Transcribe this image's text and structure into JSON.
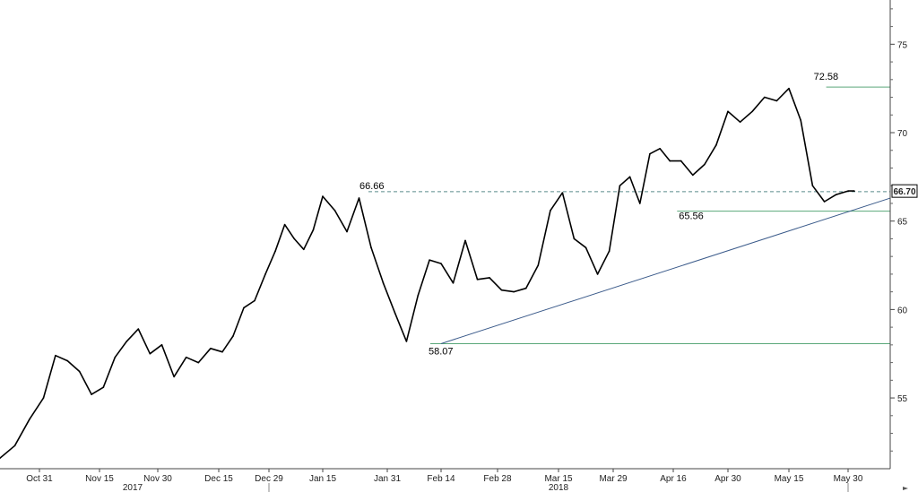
{
  "chart_data": {
    "type": "line",
    "title": "",
    "xlabel": "",
    "ylabel": "",
    "ylim": [
      51,
      77.5
    ],
    "y_axis_position": "right",
    "y_ticks": [
      55,
      60,
      65,
      70,
      75
    ],
    "x_ticks": [
      "Oct 31",
      "Nov 15",
      "Nov 30",
      "Dec 15",
      "Dec 29",
      "Jan 15",
      "Jan 31",
      "Feb 14",
      "Feb 28",
      "Mar 15",
      "Mar 29",
      "Apr 16",
      "Apr 30",
      "May 15",
      "May 30"
    ],
    "year_labels": [
      "2017",
      "2018"
    ],
    "last_value_label": "66.70",
    "series": [
      {
        "color": "#000000",
        "x": [
          "Oct 23",
          "Oct 26",
          "Oct 29",
          "Nov 01",
          "Nov 04",
          "Nov 07",
          "Nov 10",
          "Nov 13",
          "Nov 16",
          "Nov 19",
          "Nov 22",
          "Nov 25",
          "Nov 28",
          "Dec 01",
          "Dec 04",
          "Dec 07",
          "Dec 10",
          "Dec 13",
          "Dec 16",
          "Dec 19",
          "Dec 22",
          "Dec 25",
          "Dec 28",
          "Dec 31",
          "Jan 03",
          "Jan 06",
          "Jan 09",
          "Jan 12",
          "Jan 15",
          "Jan 18",
          "Jan 21",
          "Jan 24",
          "Jan 27",
          "Jan 30",
          "Feb 02",
          "Feb 05",
          "Feb 08",
          "Feb 11",
          "Feb 14",
          "Feb 17",
          "Feb 20",
          "Feb 23",
          "Feb 26",
          "Mar 01",
          "Mar 04",
          "Mar 07",
          "Mar 10",
          "Mar 13",
          "Mar 16",
          "Mar 19",
          "Mar 22",
          "Mar 25",
          "Mar 28",
          "Mar 31",
          "Apr 03",
          "Apr 06",
          "Apr 09",
          "Apr 12",
          "Apr 15",
          "Apr 18",
          "Apr 21",
          "Apr 24",
          "Apr 27",
          "Apr 30",
          "May 03",
          "May 06",
          "May 09",
          "May 12",
          "May 15",
          "May 18",
          "May 21",
          "May 24",
          "May 27",
          "May 30",
          "Jun 01"
        ],
        "values": [
          51.6,
          52.3,
          53.8,
          55.0,
          57.4,
          57.1,
          56.5,
          55.2,
          55.6,
          57.3,
          58.2,
          58.9,
          57.5,
          58.0,
          56.2,
          57.3,
          57.0,
          57.8,
          57.6,
          58.5,
          60.1,
          60.5,
          62.0,
          63.3,
          64.8,
          64.0,
          63.4,
          64.5,
          66.4,
          65.6,
          64.4,
          66.3,
          63.5,
          61.5,
          59.8,
          58.2,
          60.8,
          62.8,
          62.6,
          61.5,
          63.9,
          61.7,
          61.8,
          61.1,
          61.0,
          61.2,
          62.5,
          65.6,
          66.6,
          64.0,
          63.5,
          62.0,
          63.3,
          67.0,
          67.5,
          66.0,
          68.8,
          69.1,
          68.4,
          68.4,
          67.6,
          68.2,
          69.3,
          71.2,
          70.6,
          71.2,
          72.0,
          71.8,
          72.5,
          70.7,
          67.0,
          66.1,
          66.5,
          66.7,
          66.7
        ]
      }
    ],
    "annotations": [
      {
        "label": "72.58",
        "value": 72.58,
        "line": "horizontal, green, from peak to axis"
      },
      {
        "label": "66.66",
        "value": 66.66,
        "line": "horizontal, dashed, from peak to axis"
      },
      {
        "label": "65.56",
        "value": 65.56,
        "line": "horizontal, green, from low to axis"
      },
      {
        "label": "58.07",
        "value": 58.07,
        "line": "horizontal, green, from low to axis"
      }
    ],
    "trendline": {
      "from": [
        "Feb 14",
        58.07
      ],
      "to": [
        "Jun 01",
        66.3
      ],
      "color": "#3a5a8a"
    },
    "grid": false,
    "legend": "none"
  }
}
